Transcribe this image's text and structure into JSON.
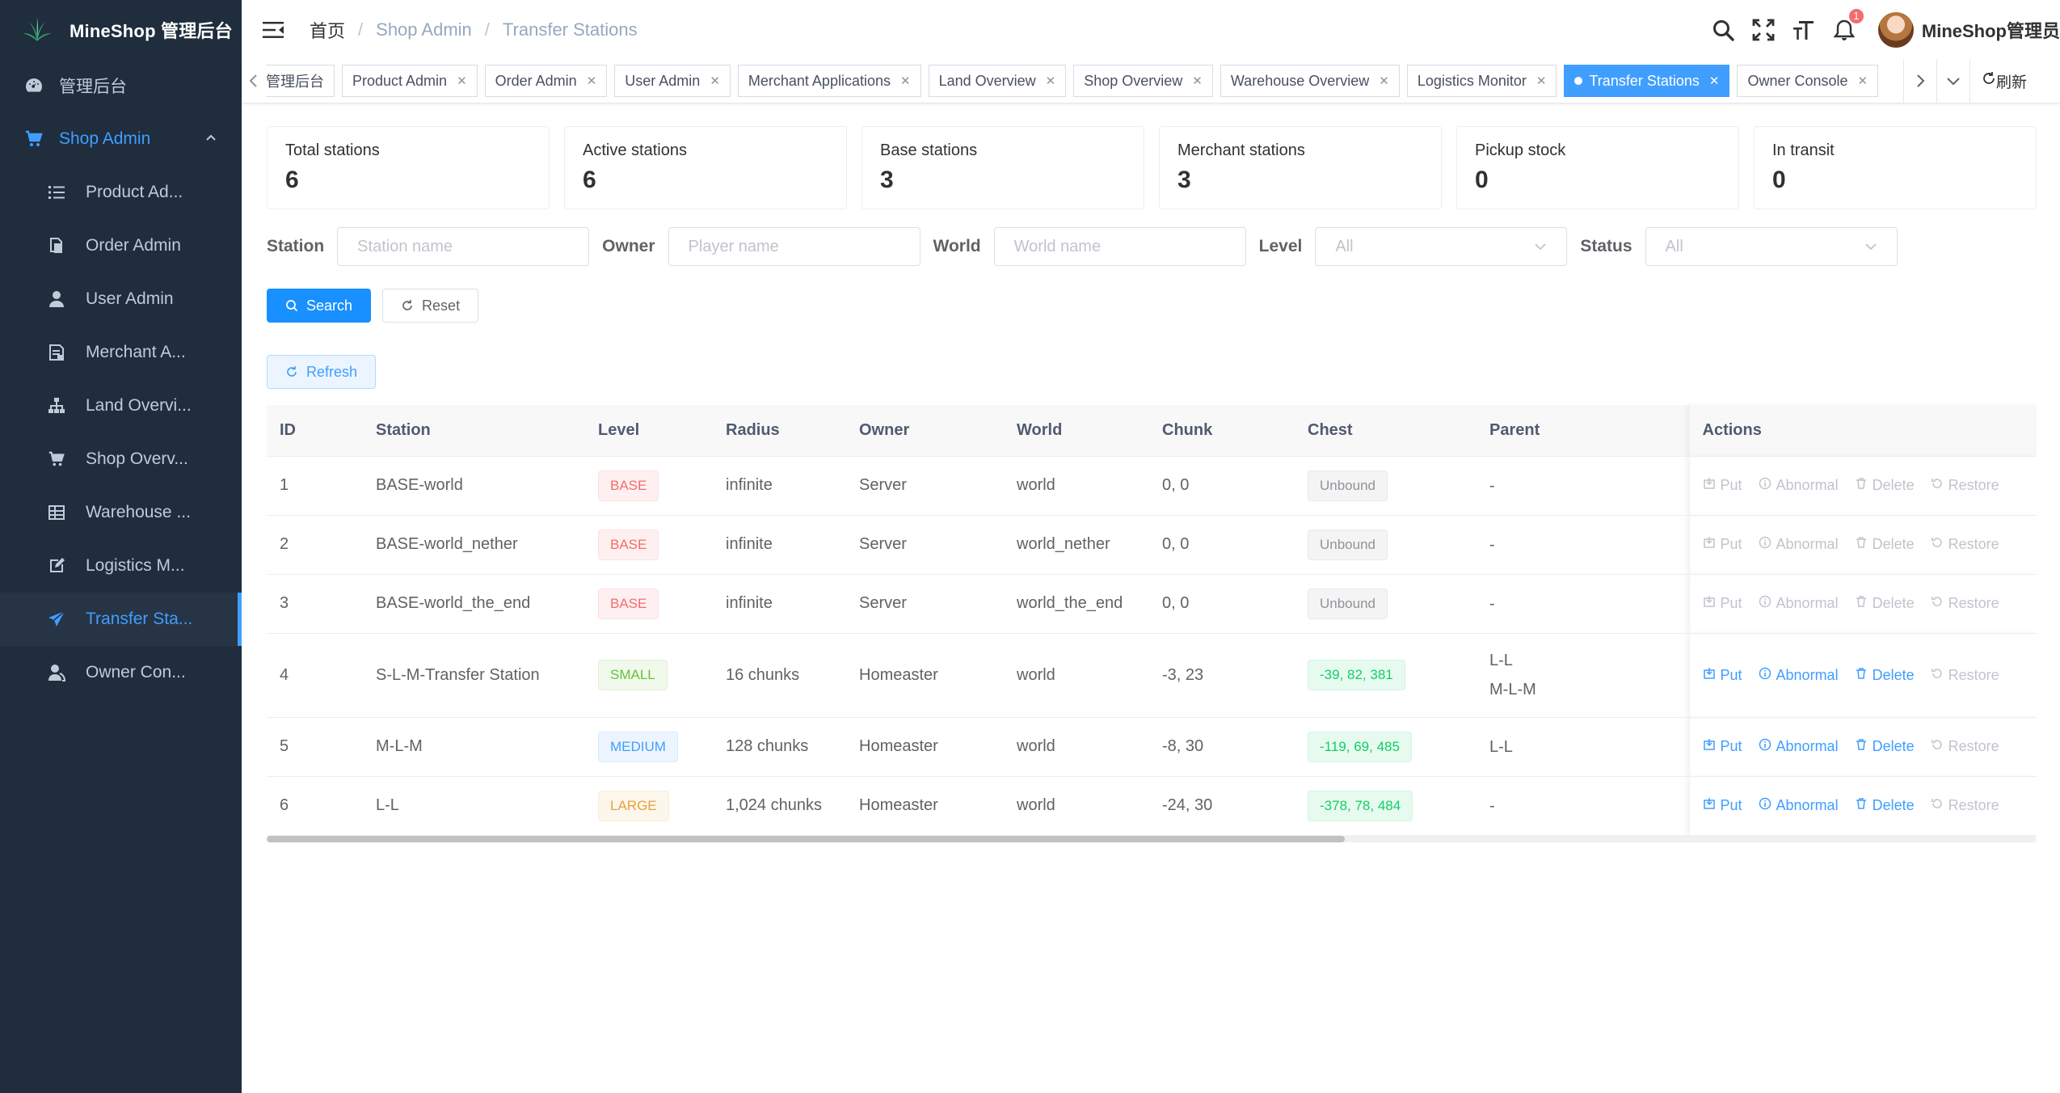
{
  "brand": {
    "name": "MineShop 管理后台"
  },
  "sidebar": {
    "top_items": [
      {
        "label": "管理后台",
        "icon": "dashboard-icon"
      },
      {
        "label": "Shop Admin",
        "icon": "cart-icon"
      }
    ],
    "sub_items": [
      {
        "label": "Product Ad...",
        "icon": "list-icon"
      },
      {
        "label": "Order Admin",
        "icon": "copy-icon"
      },
      {
        "label": "User Admin",
        "icon": "user-icon"
      },
      {
        "label": "Merchant A...",
        "icon": "form-icon"
      },
      {
        "label": "Land Overvi...",
        "icon": "tree-icon"
      },
      {
        "label": "Shop Overv...",
        "icon": "cart-icon"
      },
      {
        "label": "Warehouse ...",
        "icon": "grid-icon"
      },
      {
        "label": "Logistics M...",
        "icon": "edit-icon"
      },
      {
        "label": "Transfer Sta...",
        "icon": "send-icon"
      },
      {
        "label": "Owner Con...",
        "icon": "peoples-icon"
      }
    ]
  },
  "header": {
    "breadcrumb": [
      "首页",
      "Shop Admin",
      "Transfer Stations"
    ],
    "notification_count": "1",
    "username": "MineShop管理员"
  },
  "tabs": {
    "items": [
      "管理后台",
      "Product Admin",
      "Order Admin",
      "User Admin",
      "Merchant Applications",
      "Land Overview",
      "Shop Overview",
      "Warehouse Overview",
      "Logistics Monitor",
      "Transfer Stations",
      "Owner Console"
    ],
    "refresh_label": "刷新"
  },
  "stats": [
    {
      "label": "Total stations",
      "value": "6"
    },
    {
      "label": "Active stations",
      "value": "6"
    },
    {
      "label": "Base stations",
      "value": "3"
    },
    {
      "label": "Merchant stations",
      "value": "3"
    },
    {
      "label": "Pickup stock",
      "value": "0"
    },
    {
      "label": "In transit",
      "value": "0"
    }
  ],
  "filters": {
    "station_label": "Station",
    "station_placeholder": "Station name",
    "owner_label": "Owner",
    "owner_placeholder": "Player name",
    "world_label": "World",
    "world_placeholder": "World name",
    "level_label": "Level",
    "level_value": "All",
    "status_label": "Status",
    "status_value": "All"
  },
  "buttons": {
    "search": "Search",
    "reset": "Reset",
    "refresh": "Refresh"
  },
  "table": {
    "columns": [
      "ID",
      "Station",
      "Level",
      "Radius",
      "Owner",
      "World",
      "Chunk",
      "Chest",
      "Parent",
      "Actions"
    ],
    "actions": {
      "put": "Put",
      "abnormal": "Abnormal",
      "delete": "Delete",
      "restore": "Restore"
    },
    "rows": [
      {
        "id": "1",
        "station": "BASE-world",
        "level": "BASE",
        "radius": "infinite",
        "owner": "Server",
        "world": "world",
        "chunk": "0, 0",
        "chest": "Unbound",
        "parent": "-",
        "parent2": ""
      },
      {
        "id": "2",
        "station": "BASE-world_nether",
        "level": "BASE",
        "radius": "infinite",
        "owner": "Server",
        "world": "world_nether",
        "chunk": "0, 0",
        "chest": "Unbound",
        "parent": "-",
        "parent2": ""
      },
      {
        "id": "3",
        "station": "BASE-world_the_end",
        "level": "BASE",
        "radius": "infinite",
        "owner": "Server",
        "world": "world_the_end",
        "chunk": "0, 0",
        "chest": "Unbound",
        "parent": "-",
        "parent2": ""
      },
      {
        "id": "4",
        "station": "S-L-M-Transfer Station",
        "level": "SMALL",
        "radius": "16 chunks",
        "owner": "Homeaster",
        "world": "world",
        "chunk": "-3, 23",
        "chest": "-39, 82, 381",
        "parent": "L-L",
        "parent2": "M-L-M"
      },
      {
        "id": "5",
        "station": "M-L-M",
        "level": "MEDIUM",
        "radius": "128 chunks",
        "owner": "Homeaster",
        "world": "world",
        "chunk": "-8, 30",
        "chest": "-119, 69, 485",
        "parent": "L-L",
        "parent2": ""
      },
      {
        "id": "6",
        "station": "L-L",
        "level": "LARGE",
        "radius": "1,024 chunks",
        "owner": "Homeaster",
        "world": "world",
        "chunk": "-24, 30",
        "chest": "-378, 78, 484",
        "parent": "-",
        "parent2": ""
      }
    ]
  },
  "colors": {
    "primary": "#409eff",
    "sidebar_bg": "#1f2d3d",
    "danger": "#f56c6c",
    "success": "#67c23a",
    "warning": "#e6a23c"
  }
}
